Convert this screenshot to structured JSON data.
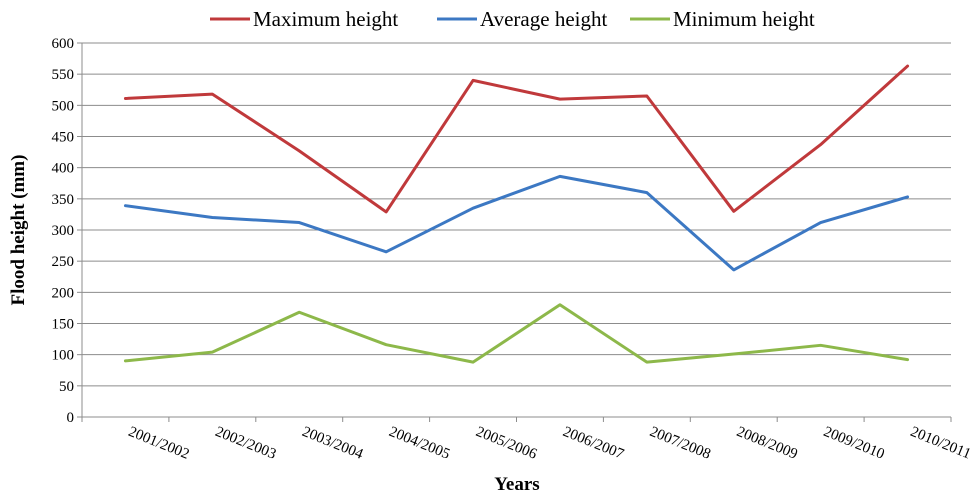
{
  "chart_data": {
    "type": "line",
    "title": "",
    "xlabel": "Years",
    "ylabel": "Flood height (mm)",
    "ylim": [
      0,
      600
    ],
    "yticks": [
      "0",
      "50",
      "100",
      "150",
      "200",
      "250",
      "300",
      "350",
      "400",
      "450",
      "500",
      "550",
      "600"
    ],
    "grid": "horizontal",
    "legend_position": "top",
    "categories": [
      "2001/2002",
      "2002/2003",
      "2003/2004",
      "2004/2005",
      "2005/2006",
      "2006/2007",
      "2007/2008",
      "2008/2009",
      "2009/2010",
      "2010/2011"
    ],
    "series": [
      {
        "name": "Maximum height",
        "color": "#c0393b",
        "values": [
          511,
          518,
          427,
          329,
          540,
          510,
          515,
          330,
          437,
          563
        ]
      },
      {
        "name": "Average height",
        "color": "#3c78c3",
        "values": [
          339,
          320,
          312,
          265,
          335,
          386,
          360,
          236,
          312,
          353
        ]
      },
      {
        "name": "Minimum height",
        "color": "#8db84a",
        "values": [
          90,
          104,
          168,
          116,
          88,
          180,
          88,
          101,
          115,
          92
        ]
      }
    ]
  }
}
